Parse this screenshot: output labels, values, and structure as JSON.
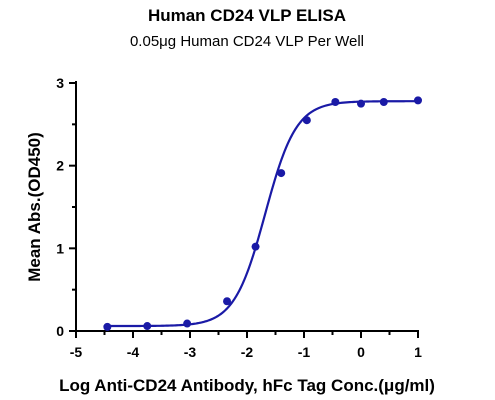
{
  "chart_data": {
    "type": "scatter",
    "title": "Human CD24 VLP ELISA",
    "subtitle": "0.05μg Human CD24 VLP Per Well",
    "xlabel": "Log Anti-CD24 Antibody, hFc Tag Conc.(μg/ml)",
    "ylabel": "Mean Abs.(OD450)",
    "xlim": [
      -5,
      1
    ],
    "ylim": [
      0,
      3
    ],
    "x_ticks": [
      -5,
      -4,
      -3,
      -2,
      -1,
      0,
      1
    ],
    "y_ticks": [
      0,
      1,
      2,
      3
    ],
    "x_tick_labels": [
      "-5",
      "-4",
      "-3",
      "-2",
      "-1",
      "0",
      "1"
    ],
    "y_tick_labels": [
      "0",
      "1",
      "2",
      "3"
    ],
    "grid": false,
    "series": [
      {
        "x": [
          -4.45,
          -3.75,
          -3.05,
          -2.35,
          -1.85,
          -1.4,
          -0.95,
          -0.45,
          0.0,
          0.4,
          1.0
        ],
        "y": [
          0.05,
          0.06,
          0.09,
          0.36,
          1.02,
          1.91,
          2.55,
          2.77,
          2.75,
          2.77,
          2.79
        ]
      }
    ],
    "fit_curve": {
      "bottom": 0.06,
      "top": 2.78,
      "logEC50": -1.68,
      "hill": 1.6
    },
    "color": "#1a1aa6"
  }
}
